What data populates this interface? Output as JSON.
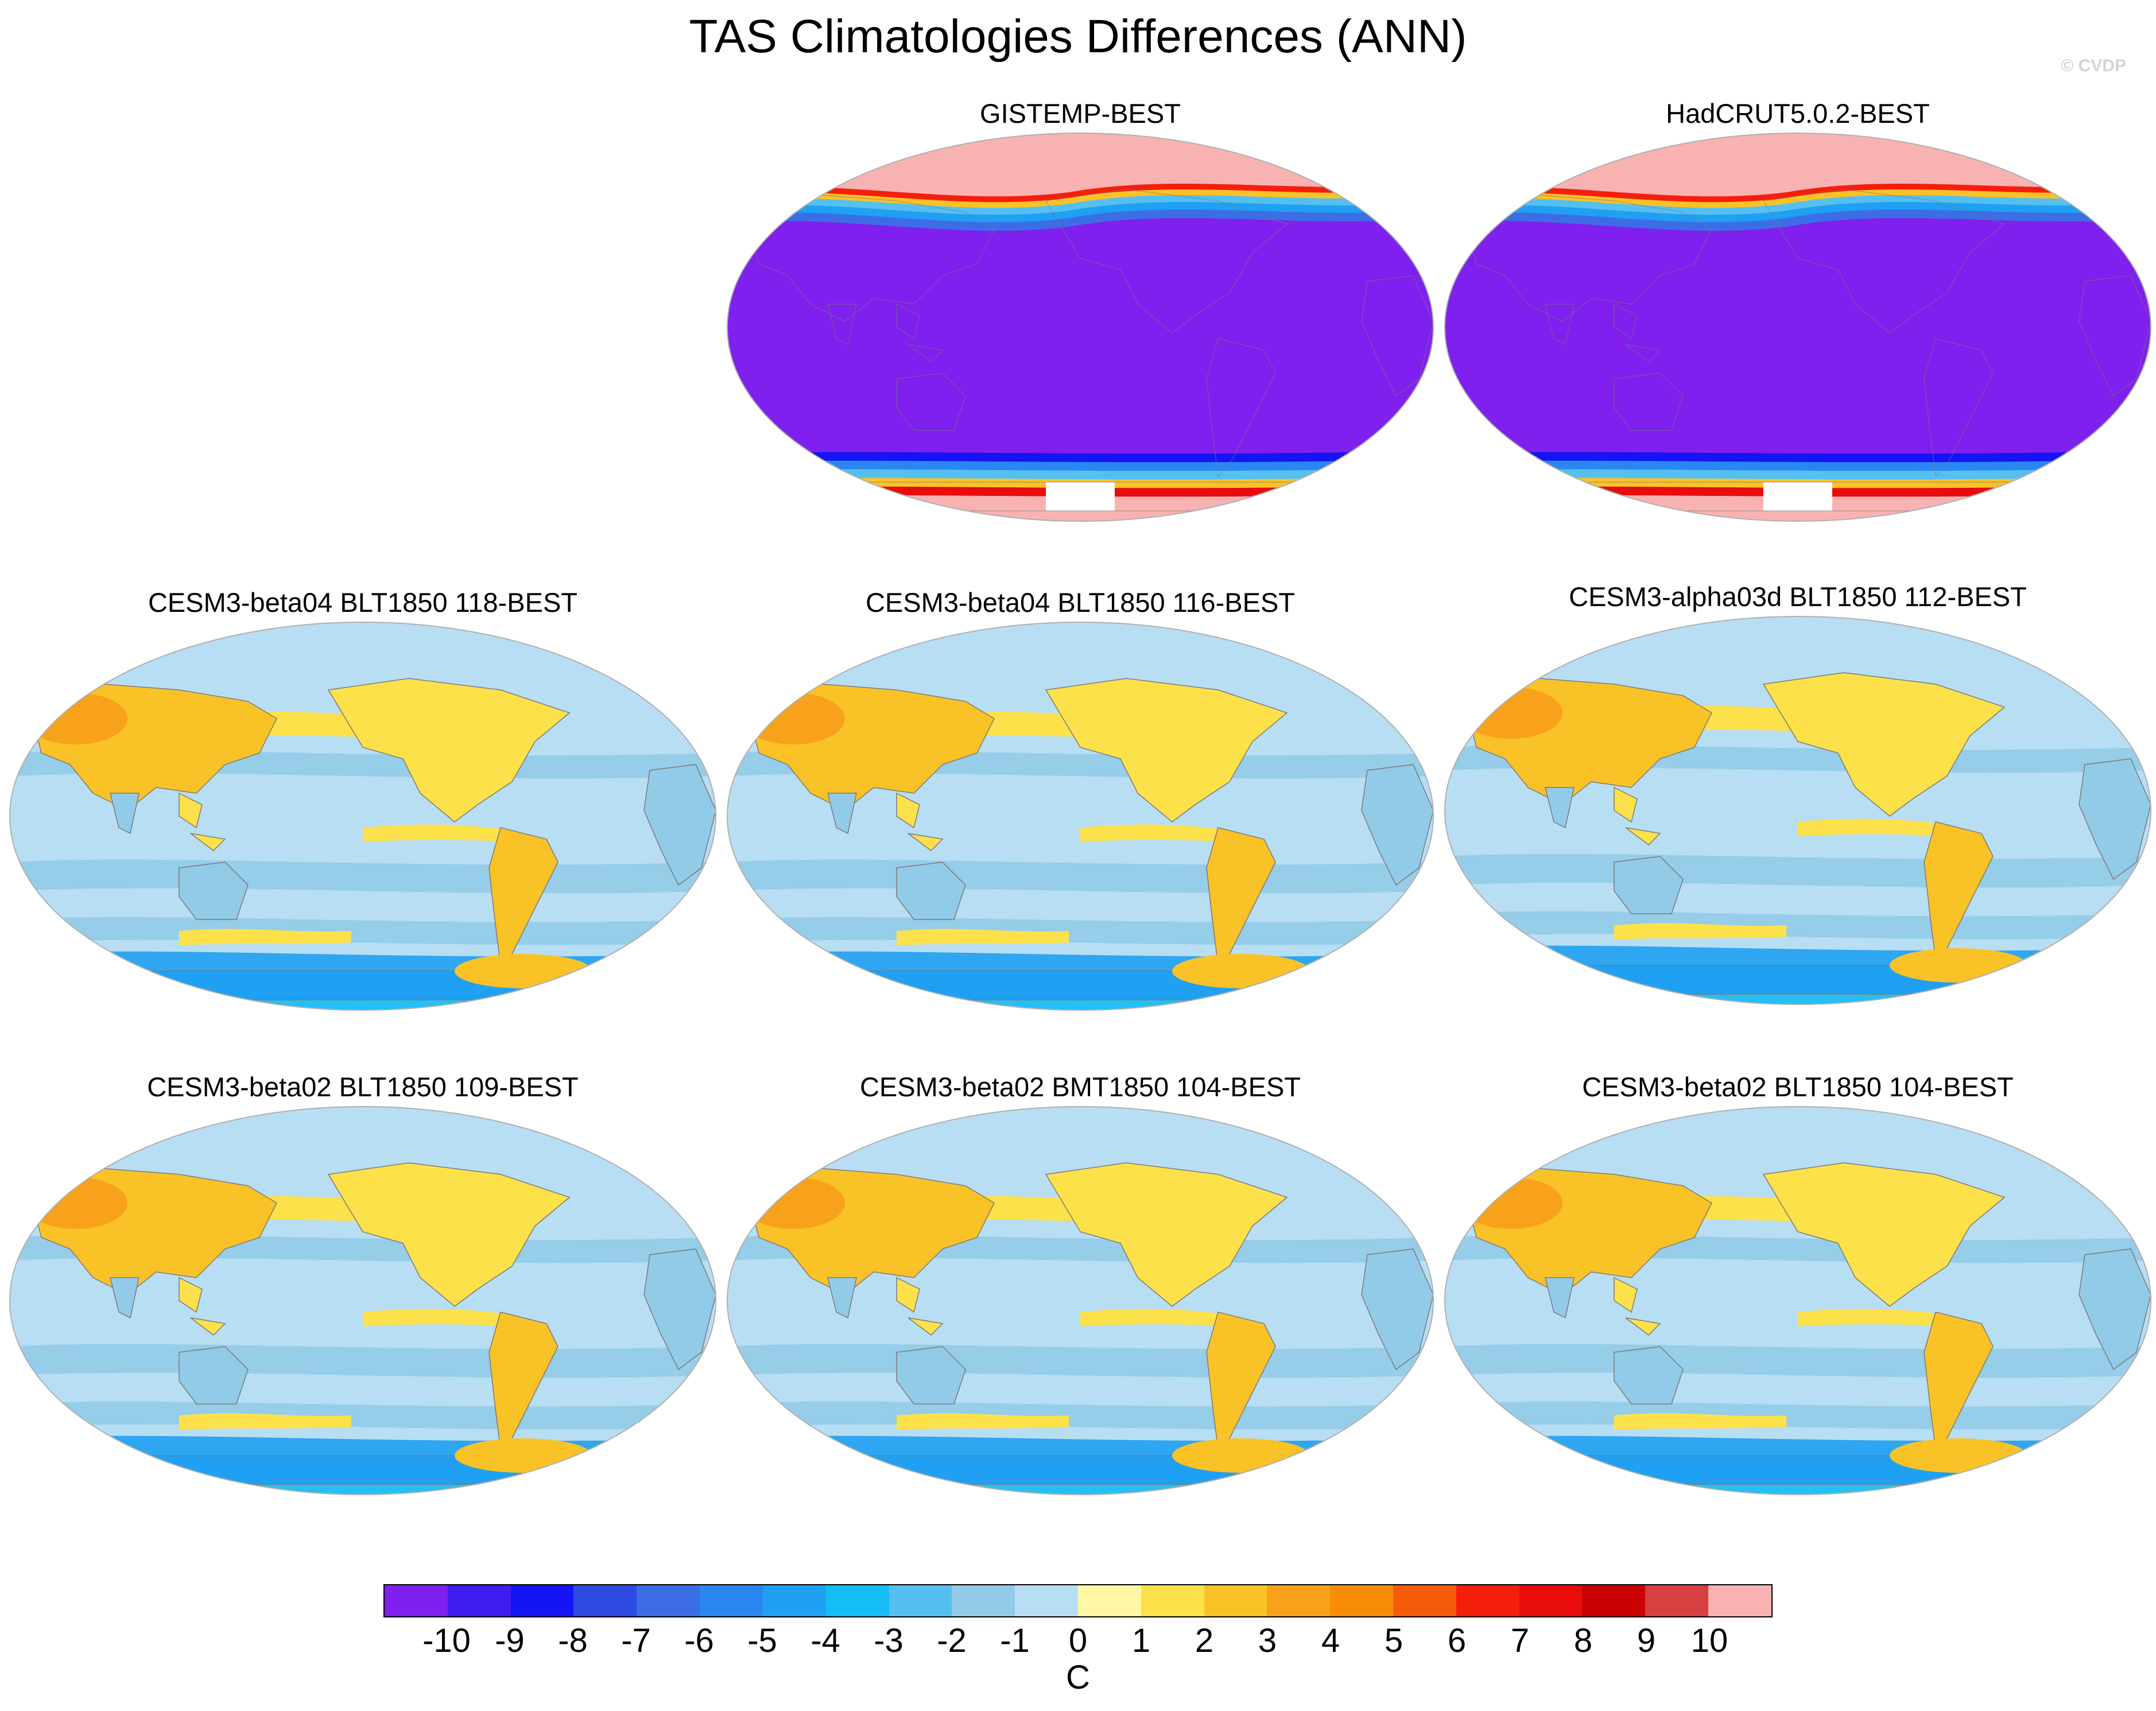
{
  "title": "TAS Climatologies Differences (ANN)",
  "credit": "© CVDP",
  "panels": [
    {
      "title": "GISTEMP-BEST",
      "style": "obs"
    },
    {
      "title": "HadCRUT5.0.2-BEST",
      "style": "obs"
    },
    {
      "title": "CESM3-beta04 BLT1850 118-BEST",
      "style": "model"
    },
    {
      "title": "CESM3-beta04 BLT1850 116-BEST",
      "style": "model"
    },
    {
      "title": "CESM3-alpha03d BLT1850 112-BEST",
      "style": "model"
    },
    {
      "title": "CESM3-beta02 BLT1850 109-BEST",
      "style": "model"
    },
    {
      "title": "CESM3-beta02 BMT1850 104-BEST",
      "style": "model"
    },
    {
      "title": "CESM3-beta02 BLT1850 104-BEST",
      "style": "model"
    }
  ],
  "colorbar": {
    "unit": "C",
    "ticks": [
      "-10",
      "-9",
      "-8",
      "-7",
      "-6",
      "-5",
      "-4",
      "-3",
      "-2",
      "-1",
      "0",
      "1",
      "2",
      "3",
      "4",
      "5",
      "6",
      "7",
      "8",
      "9",
      "10"
    ],
    "colors": [
      "#7f20ee",
      "#3f1cf0",
      "#1414f5",
      "#2d4be0",
      "#3c6de6",
      "#2a86f0",
      "#1fa0f2",
      "#14bdf5",
      "#55c0f0",
      "#92cbe8",
      "#b8def4",
      "#fff7a3",
      "#fde14a",
      "#f9c227",
      "#f7a21a",
      "#f98c07",
      "#f55b09",
      "#f41f0a",
      "#e80c0c",
      "#c80000",
      "#d64040",
      "#f9b2b2"
    ]
  },
  "map_colors": {
    "ocean_light": "#b8def4",
    "ocean_mid": "#92cbe8",
    "land_warm": "#fde14a",
    "land_hot": "#f9c227",
    "land_orange": "#f7a21a",
    "obs_fill": "#7f20ee",
    "obs_pole": "#f9b2b2",
    "coast": "#7a7a7a"
  }
}
